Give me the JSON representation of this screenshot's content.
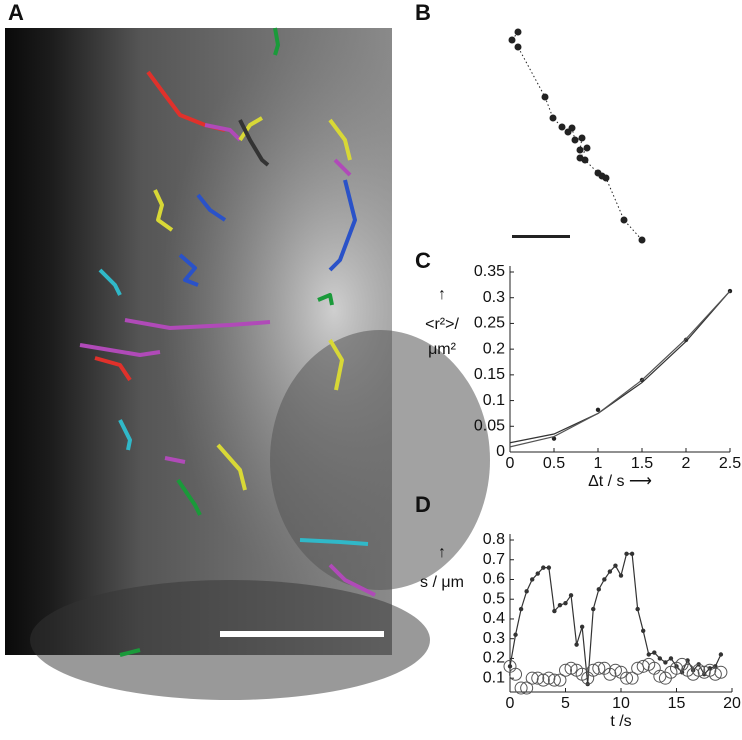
{
  "image": {
    "label": "A"
  },
  "chart_data": [
    {
      "type": "scatter",
      "label": "B",
      "xlim": [
        0,
        150
      ],
      "ylim": [
        0,
        230
      ],
      "series": [
        {
          "color": "#222222",
          "line": true,
          "dash": true,
          "marker": "dot",
          "x": [
            18,
            12,
            18,
            45,
            53,
            62,
            68,
            72,
            75,
            82,
            80,
            87,
            80,
            85,
            98,
            102,
            106,
            124,
            142
          ],
          "values": [
            218,
            210,
            203,
            153,
            132,
            123,
            118,
            122,
            110,
            112,
            100,
            102,
            92,
            90,
            77,
            74,
            72,
            30,
            10
          ]
        }
      ]
    },
    {
      "type": "line",
      "label": "C",
      "xlim": [
        0,
        2.5
      ],
      "ylim": [
        0,
        0.35
      ],
      "xticks": [
        0,
        0.5,
        1,
        1.5,
        2,
        2.5
      ],
      "yticks": [
        0,
        0.05,
        0.1,
        0.15,
        0.2,
        0.25,
        0.3,
        0.35
      ],
      "xlabel": "Δt / s ⟶",
      "ylabel": [
        "↑",
        "<r²>/",
        "μm²"
      ],
      "series": [
        {
          "color": "#222222",
          "line": false,
          "marker": "dot",
          "x": [
            0.5,
            1,
            1.5,
            2,
            2.5
          ],
          "values": [
            0.026,
            0.082,
            0.14,
            0.218,
            0.313
          ]
        },
        {
          "color": "#333333",
          "line": true,
          "marker": "none",
          "x": [
            0,
            0.5,
            1,
            1.5,
            2,
            2.5
          ],
          "values": [
            0.018,
            0.035,
            0.075,
            0.135,
            0.215,
            0.313
          ]
        },
        {
          "color": "#555555",
          "line": true,
          "marker": "none",
          "x": [
            0,
            0.5,
            1,
            1.5,
            2,
            2.5
          ],
          "values": [
            0.01,
            0.03,
            0.075,
            0.14,
            0.22,
            0.313
          ]
        }
      ]
    },
    {
      "type": "line",
      "label": "D",
      "xlim": [
        0,
        20
      ],
      "ylim": [
        0.03,
        0.8
      ],
      "xticks": [
        0,
        5,
        10,
        15,
        20
      ],
      "yticks": [
        0.1,
        0.2,
        0.3,
        0.4,
        0.5,
        0.6,
        0.7,
        0.8
      ],
      "xlabel": "t /s",
      "ylabel": [
        "↑",
        "s / μm"
      ],
      "x": [
        0,
        0.5,
        1,
        1.5,
        2,
        2.5,
        3,
        3.5,
        4,
        4.5,
        5,
        5.5,
        6,
        6.5,
        7,
        7.5,
        8,
        8.5,
        9,
        9.5,
        10,
        10.5,
        11,
        11.5,
        12,
        12.5,
        13,
        13.5,
        14,
        14.5,
        15,
        15.5,
        16,
        16.5,
        17,
        17.5,
        18,
        18.5,
        19
      ],
      "series": [
        {
          "color": "#333333",
          "line": true,
          "marker": "dot",
          "values": [
            0.16,
            0.32,
            0.45,
            0.54,
            0.6,
            0.63,
            0.66,
            0.66,
            0.44,
            0.47,
            0.48,
            0.52,
            0.27,
            0.36,
            0.07,
            0.45,
            0.55,
            0.6,
            0.64,
            0.67,
            0.62,
            0.73,
            0.73,
            0.45,
            0.34,
            0.22,
            0.23,
            0.2,
            0.18,
            0.2,
            0.16,
            0.13,
            0.19,
            0.14,
            0.17,
            0.12,
            0.15,
            0.16,
            0.22
          ]
        },
        {
          "color": "#555555",
          "line": false,
          "marker": "circle",
          "values": [
            0.16,
            0.12,
            0.05,
            0.05,
            0.1,
            0.1,
            0.09,
            0.1,
            0.09,
            0.09,
            0.14,
            0.15,
            0.14,
            0.12,
            0.1,
            0.14,
            0.15,
            0.15,
            0.12,
            0.14,
            0.13,
            0.1,
            0.1,
            0.15,
            0.16,
            0.17,
            0.15,
            0.11,
            0.1,
            0.13,
            0.15,
            0.17,
            0.14,
            0.12,
            0.14,
            0.13,
            0.14,
            0.12,
            0.13
          ]
        }
      ]
    }
  ]
}
